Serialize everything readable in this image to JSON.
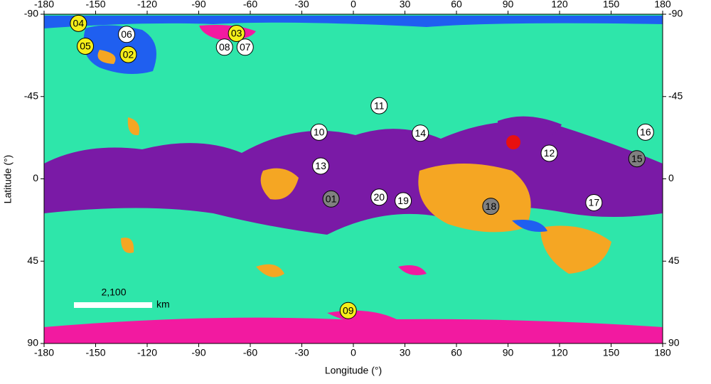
{
  "chart_data": {
    "type": "scatter",
    "xlabel": "Longitude (°)",
    "ylabel": "Latitude (°)",
    "xlim": [
      -180,
      180
    ],
    "ylim": [
      -90,
      90
    ],
    "invert_y": true,
    "xticks": [
      -180,
      -150,
      -120,
      -90,
      -60,
      -30,
      0,
      30,
      60,
      90,
      120,
      150,
      180
    ],
    "yticks": [
      -90,
      -45,
      0,
      45,
      90
    ],
    "points": [
      {
        "label": "01",
        "x": -13,
        "y": 11,
        "color": "#808080"
      },
      {
        "label": "02",
        "x": -131,
        "y": -68,
        "color": "#f5ef1a"
      },
      {
        "label": "03",
        "x": -68,
        "y": -79.5,
        "color": "#f5ef1a"
      },
      {
        "label": "04",
        "x": -160,
        "y": -85,
        "color": "#f5ef1a"
      },
      {
        "label": "05",
        "x": -156,
        "y": -72.5,
        "color": "#f5ef1a"
      },
      {
        "label": "06",
        "x": -132,
        "y": -79,
        "color": "#ffffff"
      },
      {
        "label": "07",
        "x": -63,
        "y": -72,
        "color": "#ffffff"
      },
      {
        "label": "08",
        "x": -75,
        "y": -72,
        "color": "#ffffff"
      },
      {
        "label": "09",
        "x": -3,
        "y": 72,
        "color": "#f5ef1a"
      },
      {
        "label": "10",
        "x": -20,
        "y": -25.5,
        "color": "#ffffff"
      },
      {
        "label": "11",
        "x": 15,
        "y": -40,
        "color": "#ffffff"
      },
      {
        "label": "12",
        "x": 114,
        "y": -14,
        "color": "#ffffff"
      },
      {
        "label": "13",
        "x": -19,
        "y": -7,
        "color": "#ffffff"
      },
      {
        "label": "14",
        "x": 39,
        "y": -25,
        "color": "#ffffff"
      },
      {
        "label": "15",
        "x": 165,
        "y": -11,
        "color": "#808080"
      },
      {
        "label": "16",
        "x": 170,
        "y": -25.5,
        "color": "#ffffff"
      },
      {
        "label": "17",
        "x": 140,
        "y": 13,
        "color": "#ffffff"
      },
      {
        "label": "18",
        "x": 80,
        "y": 15,
        "color": "#808080"
      },
      {
        "label": "19",
        "x": 29,
        "y": 12,
        "color": "#ffffff"
      },
      {
        "label": "20",
        "x": 15,
        "y": 10,
        "color": "#ffffff"
      }
    ],
    "scale_bar": {
      "label": "2,100",
      "unit": "km"
    }
  }
}
